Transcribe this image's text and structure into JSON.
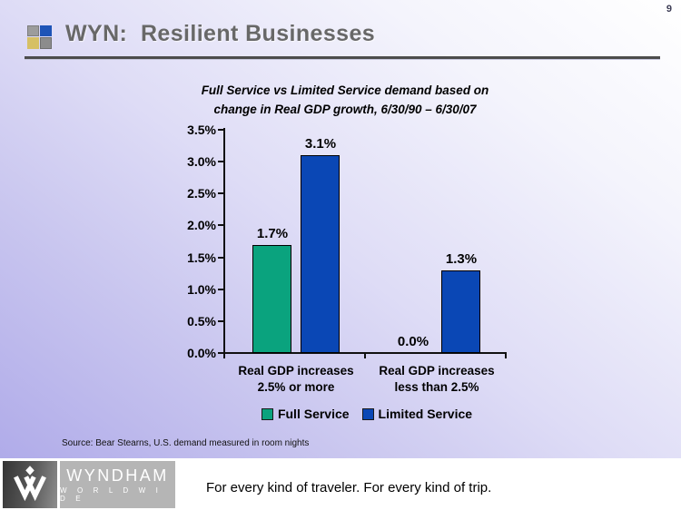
{
  "page": {
    "number": "9"
  },
  "header": {
    "title": "WYN:  Resilient Businesses"
  },
  "chart_data": {
    "type": "bar",
    "title": "Full Service vs Limited Service demand based on\nchange in Real GDP growth, 6/30/90 – 6/30/07",
    "categories": [
      "Real GDP increases\n2.5% or more",
      "Real GDP increases\nless than 2.5%"
    ],
    "series": [
      {
        "name": "Full Service",
        "color": "#0aa37e",
        "values": [
          1.7,
          0.0
        ]
      },
      {
        "name": "Limited Service",
        "color": "#0a47b5",
        "values": [
          3.1,
          1.3
        ]
      }
    ],
    "data_labels": [
      "1.7%",
      "3.1%",
      "0.0%",
      "1.3%"
    ],
    "ylabel": "",
    "xlabel": "",
    "ylim": [
      0,
      3.5
    ],
    "ytick_labels": [
      "3.5%",
      "3.0%",
      "2.5%",
      "2.0%",
      "1.5%",
      "1.0%",
      "0.5%",
      "0.0%"
    ],
    "grid": false,
    "legend_position": "bottom"
  },
  "source": {
    "text": "Source: Bear Stearns, U.S. demand measured in room nights"
  },
  "footer": {
    "brand_name": "WYNDHAM",
    "brand_subtitle": "W O R L D W I D E",
    "tagline": "For every kind of traveler. For every kind of trip."
  },
  "colors": {
    "full_service": "#0aa37e",
    "limited_service": "#0a47b5",
    "title_gray": "#686868",
    "background_lavender": "#aba6e8"
  }
}
